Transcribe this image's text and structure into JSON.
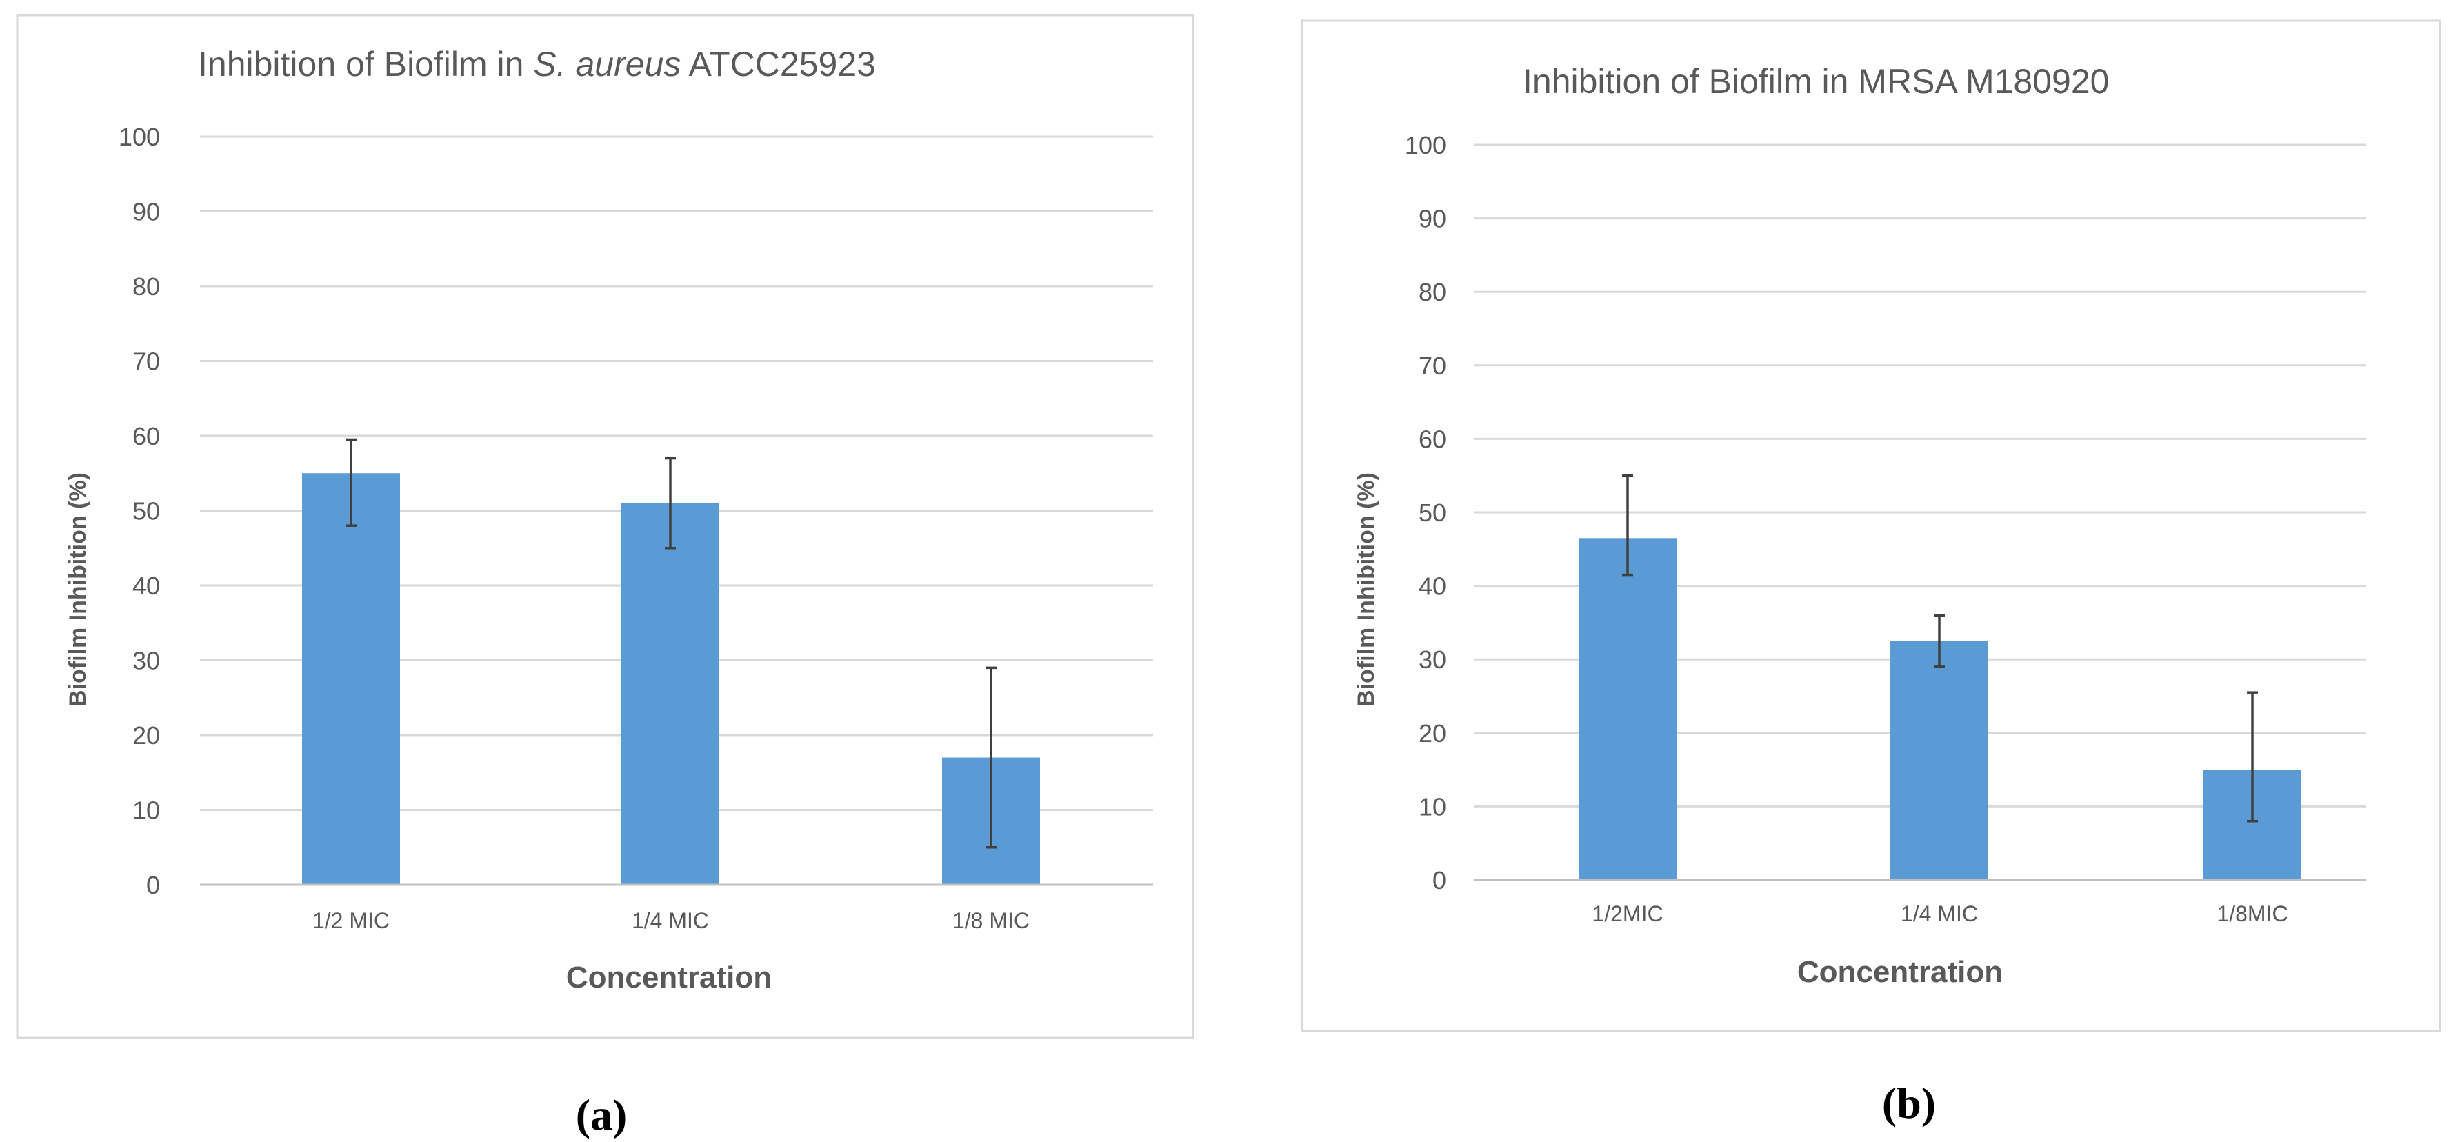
{
  "chart_data": [
    {
      "type": "bar",
      "panel_label": "(a)",
      "title_parts": [
        "Inhibition of Biofilm in ",
        "S. aureus",
        " ATCC25923"
      ],
      "categories": [
        "1/2 MIC",
        "1/4 MIC",
        "1/8 MIC"
      ],
      "values": [
        55,
        51,
        17
      ],
      "error_low": [
        48,
        45,
        5
      ],
      "error_high": [
        59.5,
        57,
        29
      ],
      "xlabel": "Concentration",
      "ylabel": "Biofilm Inhibition (%)",
      "ylim": [
        0,
        100
      ],
      "yticks": [
        0,
        10,
        20,
        30,
        40,
        50,
        60,
        70,
        80,
        90,
        100
      ],
      "grid": true,
      "bar_color": "#5b9bd5"
    },
    {
      "type": "bar",
      "panel_label": "(b)",
      "title_parts": [
        "Inhibition of Biofilm in MRSA M180920"
      ],
      "categories": [
        "1/2MIC",
        "1/4 MIC",
        "1/8MIC"
      ],
      "values": [
        46.5,
        32.5,
        15
      ],
      "error_low": [
        41.5,
        29,
        8
      ],
      "error_high": [
        55,
        36,
        25.5
      ],
      "xlabel": "Concentration",
      "ylabel": "Biofilm Inhibition (%)",
      "ylim": [
        0,
        100
      ],
      "yticks": [
        0,
        10,
        20,
        30,
        40,
        50,
        60,
        70,
        80,
        90,
        100
      ],
      "grid": true,
      "bar_color": "#5b9bd5"
    }
  ]
}
